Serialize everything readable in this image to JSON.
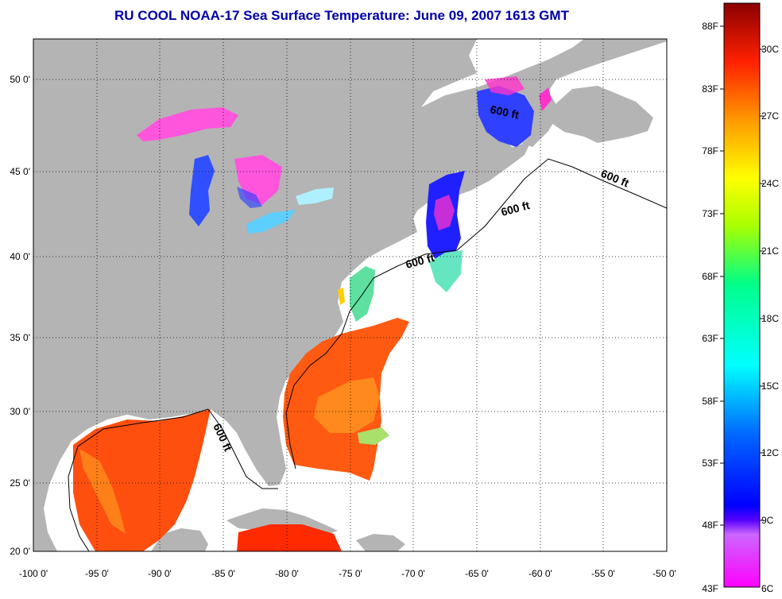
{
  "title": "RU COOL  NOAA-17  Sea Surface Temperature:  June 09, 2007 1613 GMT",
  "x_ticks": [
    "-100 0'",
    "-95 0'",
    "-90 0'",
    "-85 0'",
    "-80 0'",
    "-75 0'",
    "-70 0'",
    "-65 0'",
    "-60 0'",
    "-55 0'",
    "-50 0'"
  ],
  "y_ticks": [
    "50 0'",
    "45 0'",
    "40 0'",
    "35 0'",
    "30 0'",
    "25 0'",
    "20 0'"
  ],
  "contour_label": "600 ft",
  "colorbar": {
    "fahrenheit": [
      "88F",
      "83F",
      "78F",
      "73F",
      "68F",
      "63F",
      "58F",
      "53F",
      "48F",
      "43F"
    ],
    "celsius": [
      "30C",
      "27C",
      "24C",
      "21C",
      "18C",
      "15C",
      "12C",
      "9C",
      "6C"
    ]
  },
  "colors": {
    "land": "#b4b4b4",
    "no_data": "#ffffff",
    "title": "#0000a8",
    "warm": "#ff4000",
    "cold": "#ff30d0"
  }
}
